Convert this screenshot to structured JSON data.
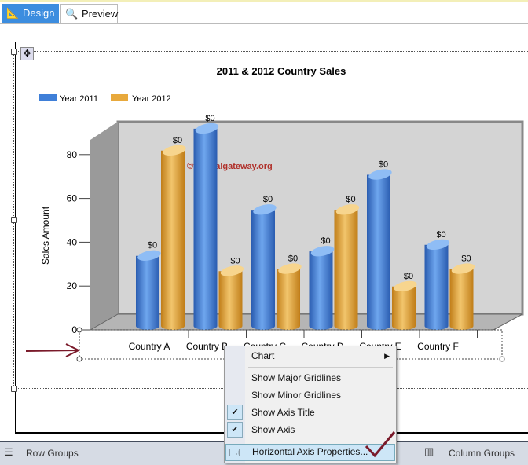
{
  "tabs": [
    {
      "label": "Design",
      "icon": "design-ruler-icon",
      "active": true
    },
    {
      "label": "Preview",
      "icon": "preview-icon",
      "active": false
    }
  ],
  "chart_data": {
    "type": "bar",
    "title": "2011 & 2012 Country Sales",
    "ylabel": "Sales Amount",
    "xlabel": "",
    "categories": [
      "Country A",
      "Country B",
      "Country C",
      "Country D",
      "Country E",
      "Country F"
    ],
    "ylim": [
      0,
      90
    ],
    "yticks": [
      "0",
      "20",
      "40",
      "60",
      "80"
    ],
    "legend": "top-left",
    "three_d": true,
    "data_label": "$0",
    "series": [
      {
        "name": "Year 2011",
        "color": "#3f7fd8",
        "values": [
          32,
          90,
          53,
          34,
          69,
          37
        ]
      },
      {
        "name": "Year 2012",
        "color": "#e8a93c",
        "values": [
          80,
          25,
          26,
          53,
          18,
          26
        ]
      }
    ]
  },
  "watermark": "©tutorialgateway.org",
  "context_menu": {
    "items": [
      {
        "label": "Chart",
        "submenu": true
      },
      {
        "label": "Show Major Gridlines",
        "checked": false
      },
      {
        "label": "Show Minor Gridlines",
        "checked": false
      },
      {
        "label": "Show Axis Title",
        "checked": true
      },
      {
        "label": "Show Axis",
        "checked": true
      },
      {
        "label": "Horizontal Axis Properties...",
        "highlighted": true
      }
    ]
  },
  "bottom": {
    "row_groups": "Row Groups",
    "column_groups": "Column Groups"
  }
}
